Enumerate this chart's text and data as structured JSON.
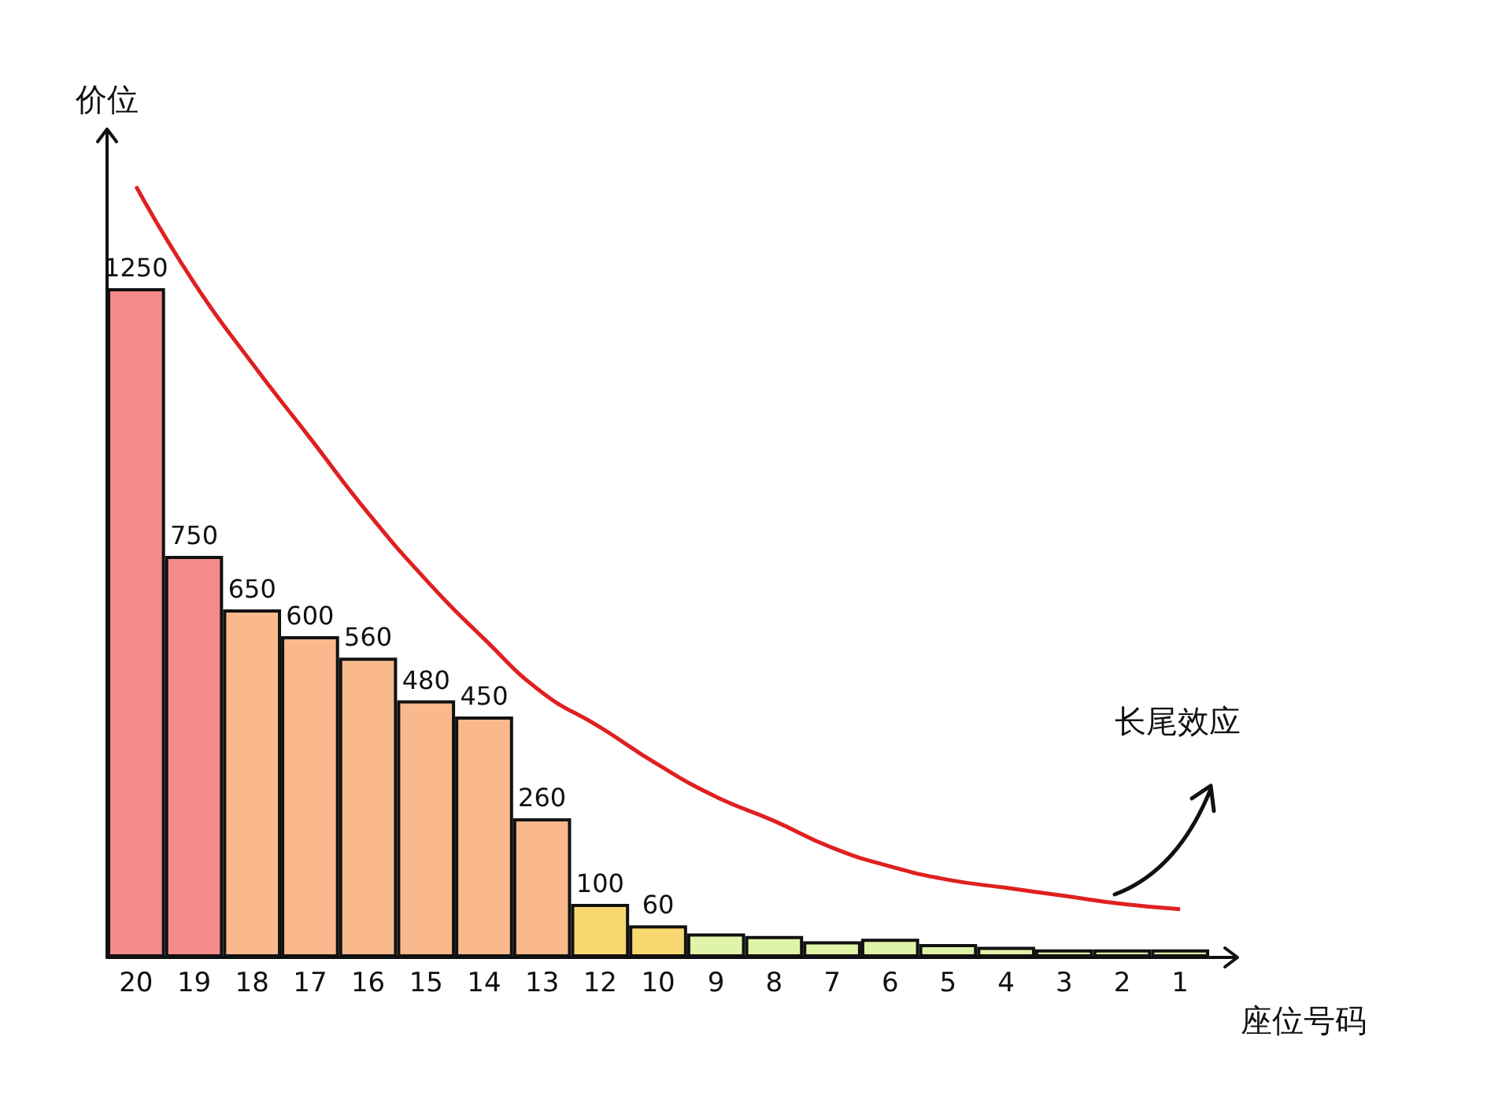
{
  "chart_data": {
    "type": "bar",
    "xlabel": "座位号码",
    "ylabel": "价位",
    "annotations": [
      "长尾效应"
    ],
    "categories": [
      "20",
      "19",
      "18",
      "17",
      "16",
      "15",
      "14",
      "13",
      "12",
      "10",
      "9",
      "8",
      "7",
      "6",
      "5",
      "4",
      "3",
      "2",
      "1"
    ],
    "ylim": [
      0,
      1500
    ],
    "tick_labels": "x",
    "grid": false,
    "series": [
      {
        "colors": [
          "#f48a8a",
          "#f48a8a",
          "#f9b98c",
          "#f9b98c",
          "#f9b98c",
          "#f9b98c",
          "#f9b98c",
          "#f9b98c",
          "#f8d870",
          "#f8d870",
          "#dff4a8",
          "#dff4a8",
          "#dff4a8",
          "#dff4a8",
          "#dff4a8",
          "#dff4a8",
          "#dff4a8",
          "#dff4a8",
          "#dff4a8"
        ],
        "values": [
          1250,
          750,
          650,
          600,
          560,
          480,
          450,
          260,
          100,
          60,
          45,
          40,
          30,
          35,
          25,
          20,
          15,
          15,
          15
        ],
        "value_labels": [
          "1250",
          "750",
          "650",
          "600",
          "560",
          "480",
          "450",
          "260",
          "100",
          "60",
          null,
          null,
          null,
          null,
          null,
          null,
          null,
          null,
          null
        ]
      },
      {
        "type": "line",
        "color": "#e02020",
        "marker": "none",
        "line_style": "solid",
        "values": [
          1440,
          1260,
          1110,
          970,
          830,
          705,
          595,
          495,
          430,
          360,
          300,
          255,
          205,
          170,
          145,
          130,
          115,
          100,
          90
        ]
      }
    ]
  }
}
